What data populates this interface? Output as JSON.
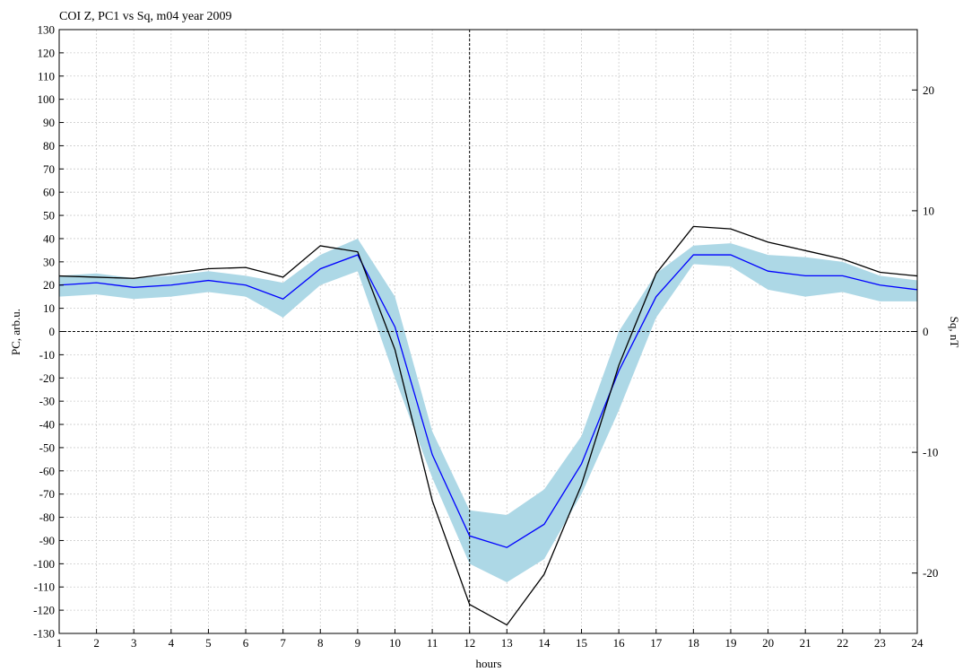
{
  "chart_data": {
    "type": "line",
    "title": "COI Z, PC1 vs Sq, m04 year 2009",
    "xlabel": "hours",
    "ylabel": "PC, arb.u.",
    "y2label": "Sq, nT",
    "xlim": [
      1,
      24
    ],
    "ylim": [
      -130,
      130
    ],
    "y2lim": [
      -25,
      25
    ],
    "x": [
      1,
      2,
      3,
      4,
      5,
      6,
      7,
      8,
      9,
      10,
      11,
      12,
      13,
      14,
      15,
      16,
      17,
      18,
      19,
      20,
      21,
      22,
      23,
      24
    ],
    "x_ticks": [
      "1",
      "2",
      "3",
      "4",
      "5",
      "6",
      "7",
      "8",
      "9",
      "10",
      "11",
      "12",
      "13",
      "14",
      "15",
      "16",
      "17",
      "18",
      "19",
      "20",
      "21",
      "22",
      "23",
      "24"
    ],
    "y_ticks": [
      "130",
      "120",
      "110",
      "100",
      "90",
      "80",
      "70",
      "60",
      "50",
      "40",
      "30",
      "20",
      "10",
      "0",
      "-10",
      "-20",
      "-30",
      "-40",
      "-50",
      "-60",
      "-70",
      "-80",
      "-90",
      "-100",
      "-110",
      "-120",
      "-130"
    ],
    "y2_ticks": [
      "20",
      "10",
      "0",
      "-10",
      "-20"
    ],
    "grid": true,
    "reference_lines": {
      "x": 12,
      "y": 0
    },
    "series": [
      {
        "axis": "left",
        "kind": "band",
        "color": "#add8e6",
        "lower": [
          15,
          16,
          14,
          15,
          17,
          15,
          6,
          20,
          26,
          -20,
          -63,
          -100,
          -108,
          -98,
          -70,
          -34,
          6,
          29,
          28,
          18,
          15,
          17,
          13,
          13
        ],
        "upper": [
          24,
          25,
          23,
          24,
          26,
          24,
          21,
          33,
          40,
          15,
          -43,
          -77,
          -79,
          -68,
          -45,
          0,
          25,
          37,
          38,
          33,
          32,
          30,
          24,
          22
        ]
      },
      {
        "axis": "left",
        "kind": "line",
        "color": "#0000ff",
        "values": [
          20,
          21,
          19,
          20,
          22,
          20,
          14,
          27,
          33,
          2,
          -53,
          -88,
          -93,
          -83,
          -57,
          -17,
          15,
          33,
          33,
          26,
          24,
          24,
          20,
          18
        ]
      },
      {
        "axis": "right",
        "kind": "line",
        "color": "#000000",
        "values": [
          4.6,
          4.5,
          4.4,
          4.8,
          5.2,
          5.3,
          4.5,
          7.1,
          6.6,
          -1.5,
          -14.0,
          -22.6,
          -24.3,
          -20.1,
          -12.7,
          -2.8,
          4.8,
          8.7,
          8.5,
          7.4,
          6.7,
          6.0,
          4.9,
          4.6
        ]
      }
    ]
  }
}
